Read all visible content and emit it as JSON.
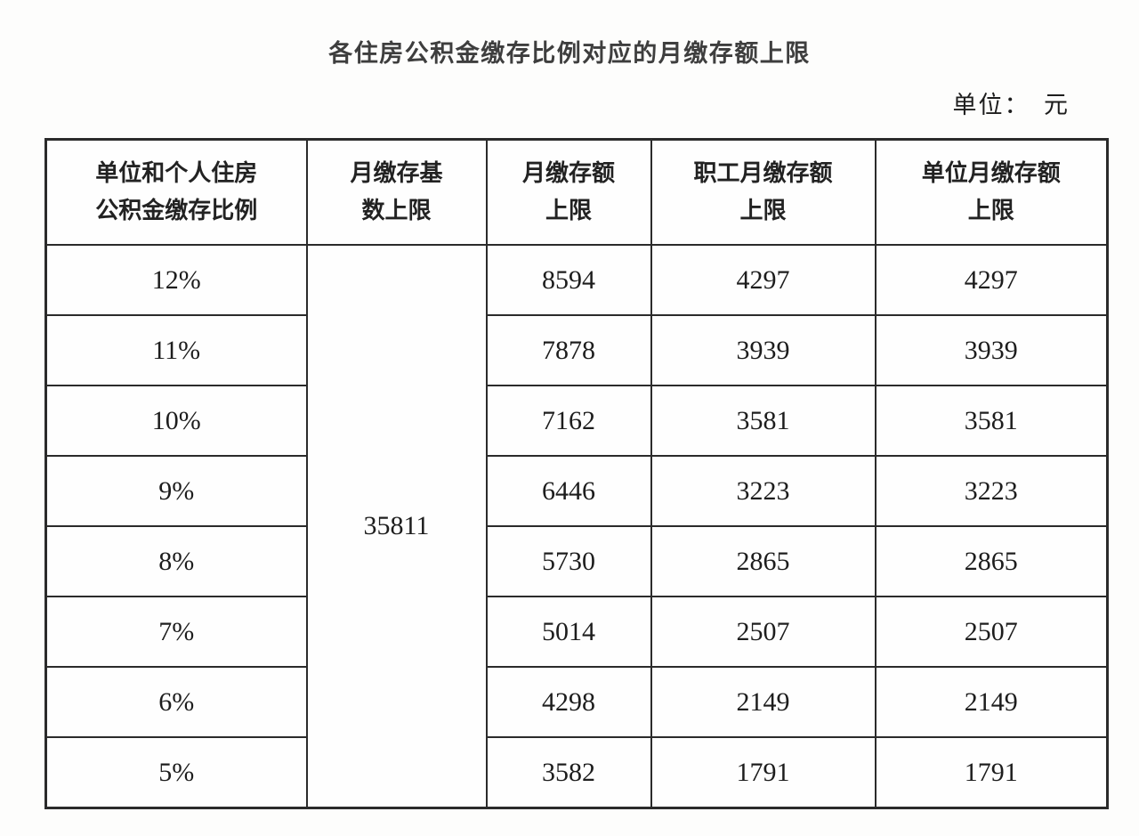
{
  "page": {
    "title": "各住房公积金缴存比例对应的月缴存额上限",
    "unit_label": "单位：　元"
  },
  "colors": {
    "background": "#fdfdfc",
    "title_text": "#3e3e3e",
    "table_text": "#1d1d1d",
    "border": "#2b2b2b"
  },
  "table": {
    "columns": [
      {
        "label": "单位和个人住房公积金缴存比例",
        "lines": [
          "单位和个人住房",
          "公积金缴存比例"
        ]
      },
      {
        "label": "月缴存基数上限",
        "lines": [
          "月缴存基",
          "数上限"
        ]
      },
      {
        "label": "月缴存额上限",
        "lines": [
          "月缴存额",
          "上限"
        ]
      },
      {
        "label": "职工月缴存额上限",
        "lines": [
          "职工月缴存额",
          "上限"
        ]
      },
      {
        "label": "单位月缴存额上限",
        "lines": [
          "单位月缴存额",
          "上限"
        ]
      }
    ],
    "base_limit": "35811",
    "rows": [
      {
        "ratio": "12%",
        "amount_limit": "8594",
        "employee_limit": "4297",
        "employer_limit": "4297"
      },
      {
        "ratio": "11%",
        "amount_limit": "7878",
        "employee_limit": "3939",
        "employer_limit": "3939"
      },
      {
        "ratio": "10%",
        "amount_limit": "7162",
        "employee_limit": "3581",
        "employer_limit": "3581"
      },
      {
        "ratio": "9%",
        "amount_limit": "6446",
        "employee_limit": "3223",
        "employer_limit": "3223"
      },
      {
        "ratio": "8%",
        "amount_limit": "5730",
        "employee_limit": "2865",
        "employer_limit": "2865"
      },
      {
        "ratio": "7%",
        "amount_limit": "5014",
        "employee_limit": "2507",
        "employer_limit": "2507"
      },
      {
        "ratio": "6%",
        "amount_limit": "4298",
        "employee_limit": "2149",
        "employer_limit": "2149"
      },
      {
        "ratio": "5%",
        "amount_limit": "3582",
        "employee_limit": "1791",
        "employer_limit": "1791"
      }
    ]
  }
}
